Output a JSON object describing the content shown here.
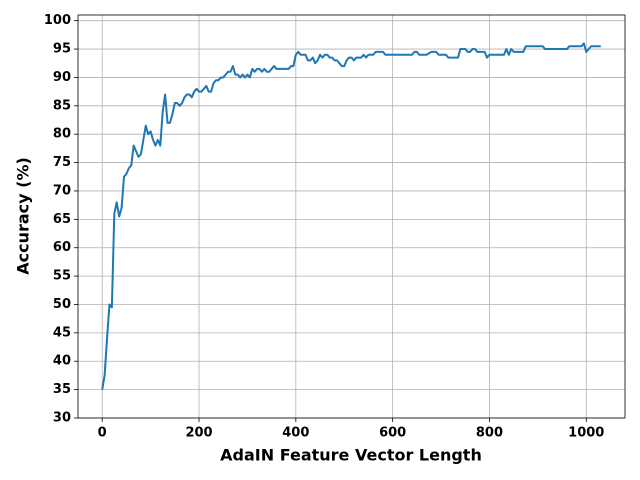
{
  "chart_data": {
    "type": "line",
    "xlabel": "AdaIN Feature Vector Length",
    "ylabel": "Accuracy (%)",
    "color": "#1f77b4",
    "grid": true,
    "xlim": [
      -50,
      1080
    ],
    "ylim": [
      30,
      101
    ],
    "xticks": [
      0,
      200,
      400,
      600,
      800,
      1000
    ],
    "yticks": [
      30,
      35,
      40,
      45,
      50,
      55,
      60,
      65,
      70,
      75,
      80,
      85,
      90,
      95,
      100
    ],
    "x": [
      0,
      5,
      10,
      15,
      20,
      25,
      30,
      35,
      40,
      45,
      50,
      55,
      60,
      65,
      70,
      75,
      80,
      85,
      90,
      95,
      100,
      105,
      110,
      115,
      120,
      125,
      130,
      135,
      140,
      145,
      150,
      155,
      160,
      165,
      170,
      175,
      180,
      185,
      190,
      195,
      200,
      205,
      210,
      215,
      220,
      225,
      230,
      235,
      240,
      245,
      250,
      255,
      260,
      265,
      270,
      275,
      280,
      285,
      290,
      295,
      300,
      305,
      310,
      315,
      320,
      325,
      330,
      335,
      340,
      345,
      350,
      355,
      360,
      365,
      370,
      375,
      380,
      385,
      390,
      395,
      400,
      405,
      410,
      415,
      420,
      425,
      430,
      435,
      440,
      445,
      450,
      455,
      460,
      465,
      470,
      475,
      480,
      485,
      490,
      495,
      500,
      505,
      510,
      515,
      520,
      525,
      530,
      535,
      540,
      545,
      550,
      555,
      560,
      565,
      570,
      575,
      580,
      585,
      600,
      620,
      640,
      645,
      650,
      655,
      670,
      680,
      690,
      695,
      710,
      715,
      735,
      740,
      750,
      755,
      760,
      765,
      770,
      775,
      790,
      795,
      800,
      830,
      835,
      840,
      845,
      850,
      870,
      875,
      900,
      910,
      915,
      960,
      965,
      990,
      995,
      1000,
      1010,
      1030
    ],
    "values": [
      35,
      37.5,
      44,
      50,
      49.5,
      66,
      68,
      65.5,
      67,
      72.5,
      73,
      74,
      74.5,
      78,
      77,
      76,
      76.5,
      79,
      81.5,
      80,
      80.5,
      79,
      78,
      79,
      78,
      84,
      87,
      82,
      82,
      83.5,
      85.5,
      85.5,
      85,
      85.5,
      86.5,
      87,
      87,
      86.5,
      87.5,
      88,
      87.5,
      87.5,
      88,
      88.5,
      87.5,
      87.5,
      89,
      89.5,
      89.5,
      90,
      90,
      90.5,
      91,
      91,
      92,
      90.5,
      90.5,
      90,
      90.5,
      90,
      90.5,
      90,
      91.5,
      91,
      91.5,
      91.5,
      91,
      91.5,
      91,
      91,
      91.5,
      92,
      91.5,
      91.5,
      91.5,
      91.5,
      91.5,
      91.5,
      92,
      92,
      94,
      94.5,
      94,
      94,
      94,
      93,
      93,
      93.5,
      92.5,
      93,
      94,
      93.5,
      94,
      94,
      93.5,
      93.5,
      93,
      93,
      92.5,
      92,
      92,
      93,
      93.5,
      93.5,
      93,
      93.5,
      93.5,
      93.5,
      94,
      93.5,
      94,
      94,
      94,
      94.5,
      94.5,
      94.5,
      94.5,
      94,
      94,
      94,
      94,
      94.5,
      94.5,
      94,
      94,
      94.5,
      94.5,
      94,
      94,
      93.5,
      93.5,
      95,
      95,
      94.5,
      94.5,
      95,
      95,
      94.5,
      94.5,
      93.5,
      94,
      94,
      95,
      94,
      95,
      94.5,
      94.5,
      95.5,
      95.5,
      95.5,
      95,
      95,
      95.5,
      95.5,
      96,
      94.5,
      95.5,
      95.5
    ]
  }
}
